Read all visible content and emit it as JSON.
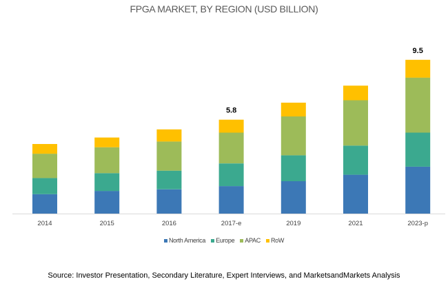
{
  "chart_data": {
    "type": "bar",
    "stacked": true,
    "title": "FPGA MARKET, BY REGION (USD BILLION)",
    "xlabel": "",
    "ylabel": "",
    "ylim": [
      0,
      10
    ],
    "grid": false,
    "legend_position": "bottom",
    "categories": [
      "2014",
      "2015",
      "2016",
      "2017-e",
      "2019",
      "2021",
      "2023-p"
    ],
    "series": [
      {
        "name": "North America",
        "color": "#3C78B6",
        "values": [
          1.2,
          1.4,
          1.5,
          1.7,
          2.0,
          2.4,
          2.9
        ]
      },
      {
        "name": "Europe",
        "color": "#3BA98F",
        "values": [
          1.0,
          1.1,
          1.15,
          1.4,
          1.6,
          1.8,
          2.1
        ]
      },
      {
        "name": "APAC",
        "color": "#9DBB59",
        "values": [
          1.5,
          1.6,
          1.8,
          1.9,
          2.4,
          2.8,
          3.4
        ]
      },
      {
        "name": "RoW",
        "color": "#FFC000",
        "values": [
          0.6,
          0.6,
          0.75,
          0.8,
          0.85,
          0.9,
          1.1
        ]
      }
    ],
    "annotations": [
      {
        "category": "2017-e",
        "text": "5.8"
      },
      {
        "category": "2023-p",
        "text": "9.5"
      }
    ],
    "source": "Source: Investor Presentation, Secondary Literature,  Expert Interviews, and MarketsandMarkets  Analysis"
  }
}
